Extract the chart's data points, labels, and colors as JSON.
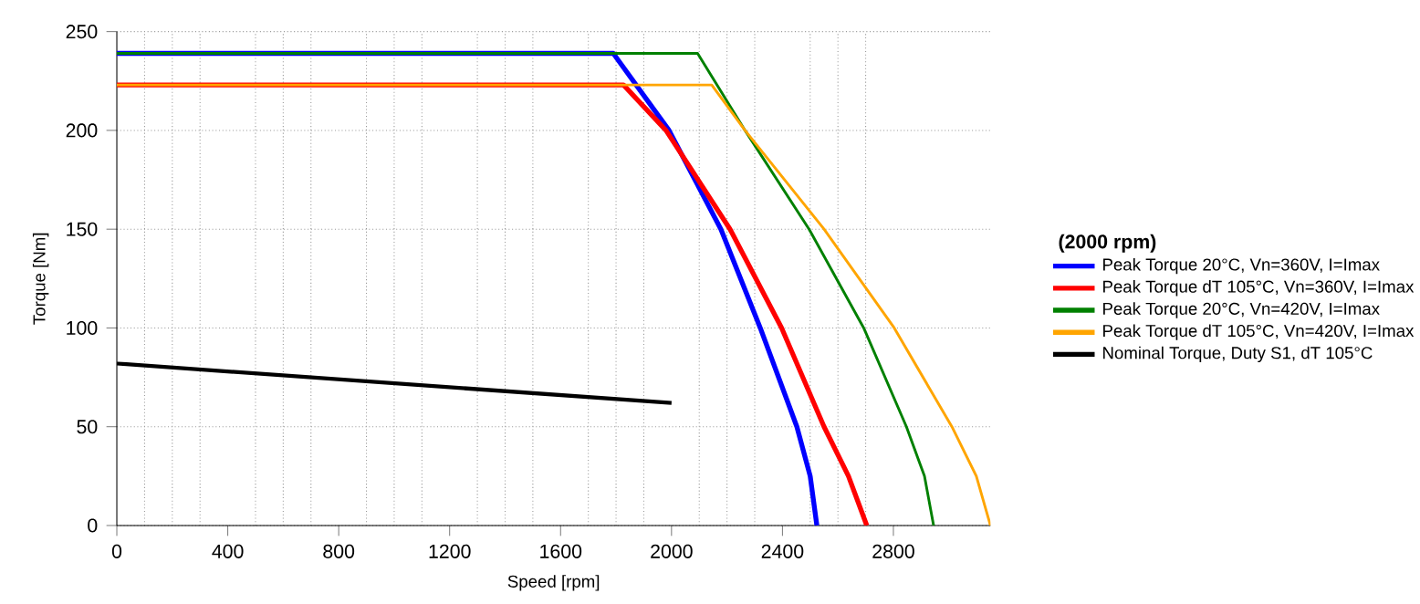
{
  "chart_data": {
    "type": "line",
    "xlabel": "Speed [rpm]",
    "ylabel": "Torque [Nm]",
    "legend_title": "(2000 rpm)",
    "xlim": [
      0,
      3150
    ],
    "ylim": [
      0,
      250
    ],
    "xticks": [
      0,
      400,
      800,
      1200,
      1600,
      2000,
      2400,
      2800
    ],
    "yticks": [
      0,
      50,
      100,
      150,
      200,
      250
    ],
    "grid": true,
    "legend": "right",
    "marker": "none",
    "line_style": "solid",
    "series": [
      {
        "name": "Peak Torque 20°C, Vn=360V, I=Imax",
        "color": "#0000ff",
        "x": [
          0,
          1790,
          1991,
          2178,
          2320,
          2452,
          2500,
          2524
        ],
        "values": [
          239,
          239,
          200,
          150,
          100,
          50,
          25,
          0
        ]
      },
      {
        "name": "Peak Torque dT 105°C, Vn=360V, I=Imax",
        "color": "#ff0000",
        "x": [
          0,
          1827,
          1980,
          2211,
          2397,
          2550,
          2638,
          2704
        ],
        "values": [
          223,
          223,
          200,
          150,
          100,
          50,
          25,
          0
        ]
      },
      {
        "name": "Peak Torque 20°C, Vn=420V, I=Imax",
        "color": "#008000",
        "x": [
          0,
          2094,
          2265,
          2496,
          2693,
          2847,
          2912,
          2945
        ],
        "values": [
          239,
          239,
          200,
          150,
          100,
          50,
          25,
          0
        ]
      },
      {
        "name": "Peak Torque dT 105°C, Vn=420V, I=Imax",
        "color": "#ffa500",
        "x": [
          0,
          2145,
          2265,
          2550,
          2803,
          3011,
          3099,
          3150
        ],
        "values": [
          223,
          223,
          200,
          150,
          100,
          50,
          25,
          0
        ]
      },
      {
        "name": "Nominal Torque, Duty S1, dT 105°C",
        "color": "#000000",
        "x": [
          0,
          2000
        ],
        "values": [
          82,
          62
        ]
      }
    ]
  }
}
